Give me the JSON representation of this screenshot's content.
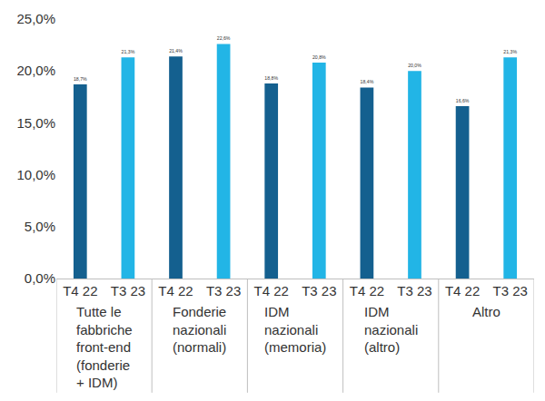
{
  "chart_data": {
    "type": "bar",
    "categories": [
      "Tutte le fabbriche front-end (fonderie + IDM)",
      "Fonderie nazionali (normali)",
      "IDM nazionali (memoria)",
      "IDM nazionali (altro)",
      "Altro"
    ],
    "series": [
      {
        "name": "T4 22",
        "color": "#14608f",
        "values": [
          18.7,
          21.4,
          18.8,
          18.4,
          16.6
        ],
        "value_labels": [
          "18,7%",
          "21,4%",
          "18,8%",
          "18,4%",
          "16,6%"
        ]
      },
      {
        "name": "T3 23",
        "color": "#22b5e6",
        "values": [
          21.3,
          22.6,
          20.8,
          20.0,
          21.3
        ],
        "value_labels": [
          "21,3%",
          "22,6%",
          "20,8%",
          "20,0%",
          "21,3%"
        ]
      }
    ],
    "ylim": [
      0,
      25
    ],
    "yticks": [
      {
        "value": 0,
        "label": "0,0%"
      },
      {
        "value": 5,
        "label": "5,0%"
      },
      {
        "value": 10,
        "label": "10,0%"
      },
      {
        "value": 15,
        "label": "15,0%"
      },
      {
        "value": 20,
        "label": "20,0%"
      },
      {
        "value": 25,
        "label": "25,0%"
      }
    ],
    "grid": false,
    "data_labels": true
  }
}
